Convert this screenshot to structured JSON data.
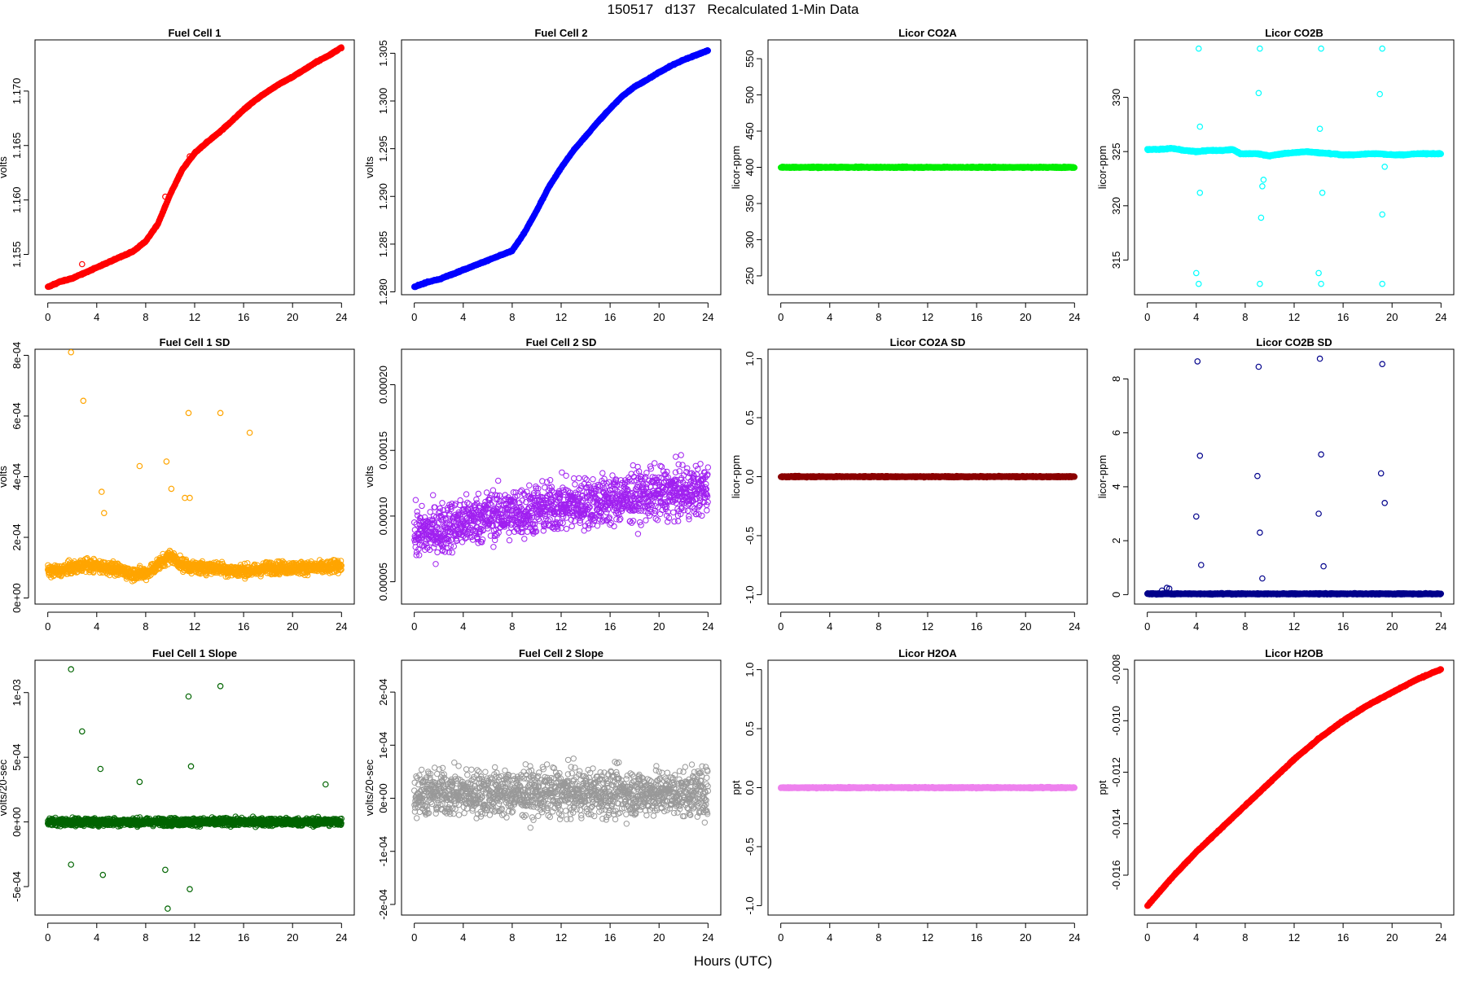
{
  "figure": {
    "title": "150517   d137   Recalculated 1-Min Data",
    "xlabel": "Hours (UTC)"
  },
  "chart_data": [
    {
      "type": "scatter",
      "title": "Fuel Cell 1",
      "ylabel": "volts",
      "color": "#ff0000",
      "xlim": [
        0,
        24
      ],
      "xticks": [
        "0",
        "4",
        "8",
        "12",
        "16",
        "20",
        "24"
      ],
      "ylim": [
        1.1513,
        1.1747
      ],
      "yticks": [
        "1.155",
        "1.160",
        "1.165",
        "1.170"
      ],
      "ytick_values": [
        1.155,
        1.16,
        1.165,
        1.17
      ],
      "series": [
        {
          "x": [
            0,
            1,
            2,
            3,
            4,
            5,
            6,
            7,
            8,
            9,
            10,
            11,
            12,
            13,
            14,
            15,
            16,
            17,
            18,
            19,
            20,
            21,
            22,
            23,
            24
          ],
          "y": [
            1.152,
            1.1525,
            1.1528,
            1.1533,
            1.1538,
            1.1543,
            1.1548,
            1.1553,
            1.1562,
            1.1578,
            1.1605,
            1.1628,
            1.1643,
            1.1653,
            1.1662,
            1.1672,
            1.1683,
            1.1692,
            1.17,
            1.1707,
            1.1713,
            1.172,
            1.1727,
            1.1733,
            1.174
          ]
        }
      ],
      "outliers": [
        {
          "x": 9.6,
          "y": 1.1603
        },
        {
          "x": 11.6,
          "y": 1.164
        },
        {
          "x": 11.3,
          "y": 1.1632
        },
        {
          "x": 2.8,
          "y": 1.1541
        }
      ]
    },
    {
      "type": "scatter",
      "title": "Fuel Cell 2",
      "ylabel": "volts",
      "color": "#0000ff",
      "xlim": [
        0,
        24
      ],
      "xticks": [
        "0",
        "4",
        "8",
        "12",
        "16",
        "20",
        "24"
      ],
      "ylim": [
        1.2797,
        1.3064
      ],
      "yticks": [
        "1.280",
        "1.285",
        "1.290",
        "1.295",
        "1.300",
        "1.305"
      ],
      "ytick_values": [
        1.28,
        1.285,
        1.29,
        1.295,
        1.3,
        1.305
      ],
      "series": [
        {
          "x": [
            0,
            1,
            2,
            3,
            4,
            5,
            6,
            7,
            8,
            9,
            10,
            11,
            12,
            13,
            14,
            15,
            16,
            17,
            18,
            19,
            20,
            21,
            22,
            23,
            24
          ],
          "y": [
            1.2805,
            1.281,
            1.2813,
            1.2818,
            1.2823,
            1.2828,
            1.2833,
            1.2838,
            1.2843,
            1.2862,
            1.2885,
            1.291,
            1.293,
            1.2948,
            1.2963,
            1.2978,
            1.2992,
            1.3005,
            1.3015,
            1.3022,
            1.303,
            1.3037,
            1.3043,
            1.3048,
            1.3053
          ]
        }
      ]
    },
    {
      "type": "scatter",
      "title": "Licor CO2A",
      "ylabel": "licor-ppm",
      "color": "#00ee00",
      "xlim": [
        0,
        24
      ],
      "xticks": [
        "0",
        "4",
        "8",
        "12",
        "16",
        "20",
        "24"
      ],
      "ylim": [
        224,
        576
      ],
      "yticks": [
        "250",
        "300",
        "350",
        "400",
        "450",
        "500",
        "550"
      ],
      "ytick_values": [
        250,
        300,
        350,
        400,
        450,
        500,
        550
      ],
      "series": [
        {
          "x": [
            0,
            24
          ],
          "y": [
            400,
            400
          ]
        }
      ]
    },
    {
      "type": "scatter",
      "title": "Licor CO2B",
      "ylabel": "licor-ppm",
      "color": "#00ffff",
      "xlim": [
        0,
        24
      ],
      "xticks": [
        "0",
        "4",
        "8",
        "12",
        "16",
        "20",
        "24"
      ],
      "ylim": [
        311.8,
        335.3
      ],
      "yticks": [
        "315",
        "320",
        "325",
        "330"
      ],
      "ytick_values": [
        315,
        320,
        325,
        330
      ],
      "series": [
        {
          "x": [
            0,
            1,
            2,
            3,
            4,
            5,
            6,
            7,
            7.6,
            8,
            9,
            10,
            11,
            12,
            13,
            14,
            15,
            16,
            17,
            18,
            19,
            20,
            21,
            22,
            23,
            24
          ],
          "y": [
            325.2,
            325.2,
            325.3,
            325.1,
            325.0,
            325.1,
            325.1,
            325.2,
            324.8,
            324.8,
            324.8,
            324.6,
            324.8,
            324.9,
            325.0,
            324.9,
            324.8,
            324.7,
            324.7,
            324.8,
            324.8,
            324.7,
            324.7,
            324.8,
            324.8,
            324.8
          ]
        }
      ],
      "outliers": [
        {
          "x": 4.2,
          "y": 334.5
        },
        {
          "x": 9.2,
          "y": 334.5
        },
        {
          "x": 14.2,
          "y": 334.5
        },
        {
          "x": 19.2,
          "y": 334.5
        },
        {
          "x": 4.2,
          "y": 312.8
        },
        {
          "x": 9.2,
          "y": 312.8
        },
        {
          "x": 14.2,
          "y": 312.8
        },
        {
          "x": 19.2,
          "y": 312.8
        },
        {
          "x": 4.3,
          "y": 321.2
        },
        {
          "x": 9.4,
          "y": 321.8
        },
        {
          "x": 14.3,
          "y": 321.2
        },
        {
          "x": 9.1,
          "y": 330.4
        },
        {
          "x": 19.0,
          "y": 330.3
        },
        {
          "x": 4.3,
          "y": 327.3
        },
        {
          "x": 14.1,
          "y": 327.1
        },
        {
          "x": 9.5,
          "y": 322.4
        },
        {
          "x": 9.3,
          "y": 318.9
        },
        {
          "x": 19.2,
          "y": 319.2
        },
        {
          "x": 19.4,
          "y": 323.6
        },
        {
          "x": 4.0,
          "y": 313.8
        },
        {
          "x": 14.0,
          "y": 313.8
        }
      ]
    },
    {
      "type": "scatter",
      "title": "Fuel Cell 1 SD",
      "ylabel": "volts",
      "color": "#ffa500",
      "xlim": [
        0,
        24
      ],
      "xticks": [
        "0",
        "4",
        "8",
        "12",
        "16",
        "20",
        "24"
      ],
      "ylim": [
        -2e-05,
        0.00082
      ],
      "yticks": [
        "0e+00",
        "2e-04",
        "4e-04",
        "6e-04",
        "8e-04"
      ],
      "ytick_values": [
        0,
        0.0002,
        0.0004,
        0.0006,
        0.0008
      ],
      "series": [
        {
          "x": [
            0,
            1,
            2,
            3,
            4,
            5,
            6,
            7,
            8,
            9,
            10,
            11,
            12,
            13,
            14,
            15,
            16,
            17,
            18,
            19,
            20,
            21,
            22,
            23,
            24
          ],
          "y": [
            9e-05,
            9e-05,
            0.0001,
            0.00011,
            0.000105,
            0.0001,
            9e-05,
            8e-05,
            8e-05,
            0.00011,
            0.00014,
            0.00011,
            0.0001,
            0.0001,
            0.0001,
            9e-05,
            9e-05,
            9e-05,
            0.0001,
            0.0001,
            0.0001,
            0.0001,
            0.0001,
            0.0001,
            0.00011
          ]
        }
      ],
      "spread": 3.5e-05,
      "outliers": [
        {
          "x": 1.9,
          "y": 0.00081
        },
        {
          "x": 2.9,
          "y": 0.00065
        },
        {
          "x": 11.5,
          "y": 0.00061
        },
        {
          "x": 14.1,
          "y": 0.00061
        },
        {
          "x": 16.5,
          "y": 0.000545
        },
        {
          "x": 9.7,
          "y": 0.00045
        },
        {
          "x": 7.5,
          "y": 0.000435
        },
        {
          "x": 4.4,
          "y": 0.00035
        },
        {
          "x": 10.1,
          "y": 0.00036
        },
        {
          "x": 11.2,
          "y": 0.00033
        },
        {
          "x": 11.6,
          "y": 0.00033
        },
        {
          "x": 4.6,
          "y": 0.00028
        }
      ]
    },
    {
      "type": "scatter",
      "title": "Fuel Cell 2 SD",
      "ylabel": "volts",
      "color": "#a020f0",
      "xlim": [
        0,
        24
      ],
      "xticks": [
        "0",
        "4",
        "8",
        "12",
        "16",
        "20",
        "24"
      ],
      "ylim": [
        3.3e-05,
        0.000227
      ],
      "yticks": [
        "0.00005",
        "0.00010",
        "0.00015",
        "0.00020"
      ],
      "ytick_values": [
        5e-05,
        0.0001,
        0.00015,
        0.0002
      ],
      "series": [
        {
          "x": [
            0,
            2,
            4,
            6,
            8,
            10,
            12,
            14,
            16,
            18,
            20,
            22,
            24
          ],
          "y": [
            8.5e-05,
            9e-05,
            9.5e-05,
            0.0001,
            0.000102,
            0.000105,
            0.000108,
            0.00011,
            0.000112,
            0.000115,
            0.000117,
            0.000118,
            0.00012
          ]
        }
      ],
      "spread": 3.3e-05
    },
    {
      "type": "scatter",
      "title": "Licor CO2A SD",
      "ylabel": "licor-ppm",
      "color": "#8b0000",
      "xlim": [
        0,
        24
      ],
      "xticks": [
        "0",
        "4",
        "8",
        "12",
        "16",
        "20",
        "24"
      ],
      "ylim": [
        -1.08,
        1.08
      ],
      "yticks": [
        "-1.0",
        "-0.5",
        "0.0",
        "0.5",
        "1.0"
      ],
      "ytick_values": [
        -1,
        -0.5,
        0,
        0.5,
        1
      ],
      "series": [
        {
          "x": [
            0,
            24
          ],
          "y": [
            0,
            0
          ]
        }
      ]
    },
    {
      "type": "scatter",
      "title": "Licor CO2B SD",
      "ylabel": "licor-ppm",
      "color": "#00008b",
      "xlim": [
        0,
        24
      ],
      "xticks": [
        "0",
        "4",
        "8",
        "12",
        "16",
        "20",
        "24"
      ],
      "ylim": [
        -0.35,
        9.1
      ],
      "yticks": [
        "0",
        "2",
        "4",
        "6",
        "8"
      ],
      "ytick_values": [
        0,
        2,
        4,
        6,
        8
      ],
      "series": [
        {
          "x": [
            0,
            24
          ],
          "y": [
            0.03,
            0.03
          ]
        }
      ],
      "outliers": [
        {
          "x": 4.1,
          "y": 8.65
        },
        {
          "x": 9.1,
          "y": 8.45
        },
        {
          "x": 14.1,
          "y": 8.75
        },
        {
          "x": 19.2,
          "y": 8.55
        },
        {
          "x": 4.3,
          "y": 5.15
        },
        {
          "x": 14.2,
          "y": 5.2
        },
        {
          "x": 19.1,
          "y": 4.5
        },
        {
          "x": 9.0,
          "y": 4.4
        },
        {
          "x": 19.4,
          "y": 3.4
        },
        {
          "x": 14.0,
          "y": 3.0
        },
        {
          "x": 4.0,
          "y": 2.9
        },
        {
          "x": 9.2,
          "y": 2.3
        },
        {
          "x": 4.4,
          "y": 1.1
        },
        {
          "x": 14.4,
          "y": 1.05
        },
        {
          "x": 9.4,
          "y": 0.6
        },
        {
          "x": 1.6,
          "y": 0.25
        },
        {
          "x": 1.8,
          "y": 0.22
        },
        {
          "x": 1.2,
          "y": 0.15
        }
      ]
    },
    {
      "type": "scatter",
      "title": "Fuel Cell 1 Slope",
      "ylabel": "volts/20-sec",
      "color": "#006400",
      "xlim": [
        0,
        24
      ],
      "xticks": [
        "0",
        "4",
        "8",
        "12",
        "16",
        "20",
        "24"
      ],
      "ylim": [
        -0.00072,
        0.00125
      ],
      "yticks": [
        "-5e-04",
        "0e+00",
        "5e-04",
        "1e-03"
      ],
      "ytick_values": [
        -0.0005,
        0,
        0.0005,
        0.001
      ],
      "series": [
        {
          "x": [
            0,
            24
          ],
          "y": [
            0,
            0
          ]
        }
      ],
      "spread": 5e-05,
      "outliers": [
        {
          "x": 1.9,
          "y": 0.00118
        },
        {
          "x": 11.5,
          "y": 0.00097
        },
        {
          "x": 14.1,
          "y": 0.00105
        },
        {
          "x": 2.8,
          "y": 0.0007
        },
        {
          "x": 11.7,
          "y": 0.00043
        },
        {
          "x": 4.3,
          "y": 0.00041
        },
        {
          "x": 7.5,
          "y": 0.00031
        },
        {
          "x": 22.7,
          "y": 0.00029
        },
        {
          "x": 1.9,
          "y": -0.00033
        },
        {
          "x": 4.5,
          "y": -0.00041
        },
        {
          "x": 9.6,
          "y": -0.00037
        },
        {
          "x": 11.6,
          "y": -0.00052
        },
        {
          "x": 9.8,
          "y": -0.00067
        }
      ]
    },
    {
      "type": "scatter",
      "title": "Fuel Cell 2 Slope",
      "ylabel": "volts/20-sec",
      "color": "#999999",
      "xlim": [
        0,
        24
      ],
      "xticks": [
        "0",
        "4",
        "8",
        "12",
        "16",
        "20",
        "24"
      ],
      "ylim": [
        -0.00022,
        0.00026
      ],
      "yticks": [
        "-2e-04",
        "-1e-04",
        "0e+00",
        "1e-04",
        "2e-04"
      ],
      "ytick_values": [
        -0.0002,
        -0.0001,
        0,
        0.0001,
        0.0002
      ],
      "series": [
        {
          "x": [
            0,
            24
          ],
          "y": [
            1e-05,
            1e-05
          ]
        }
      ],
      "spread": 7.5e-05
    },
    {
      "type": "scatter",
      "title": "Licor H2OA",
      "ylabel": "ppt",
      "color": "#ee82ee",
      "xlim": [
        0,
        24
      ],
      "xticks": [
        "0",
        "4",
        "8",
        "12",
        "16",
        "20",
        "24"
      ],
      "ylim": [
        -1.08,
        1.08
      ],
      "yticks": [
        "-1.0",
        "-0.5",
        "0.0",
        "0.5",
        "1.0"
      ],
      "ytick_values": [
        -1,
        -0.5,
        0,
        0.5,
        1
      ],
      "series": [
        {
          "x": [
            0,
            24
          ],
          "y": [
            0,
            0
          ]
        }
      ]
    },
    {
      "type": "scatter",
      "title": "Licor H2OB",
      "ylabel": "ppt",
      "color": "#ff0000",
      "xlim": [
        0,
        24
      ],
      "xticks": [
        "0",
        "4",
        "8",
        "12",
        "16",
        "20",
        "24"
      ],
      "ylim": [
        -0.01755,
        -0.00765
      ],
      "yticks": [
        "-0.016",
        "-0.014",
        "-0.012",
        "-0.010",
        "-0.008"
      ],
      "ytick_values": [
        -0.016,
        -0.014,
        -0.012,
        -0.01,
        -0.008
      ],
      "series": [
        {
          "x": [
            0,
            2,
            4,
            6,
            8,
            10,
            12,
            14,
            16,
            18,
            20,
            22,
            24
          ],
          "y": [
            -0.0172,
            -0.0161,
            -0.0151,
            -0.0142,
            -0.0133,
            -0.0124,
            -0.0115,
            -0.0107,
            -0.01,
            -0.0094,
            -0.0089,
            -0.0084,
            -0.008
          ]
        }
      ]
    }
  ]
}
